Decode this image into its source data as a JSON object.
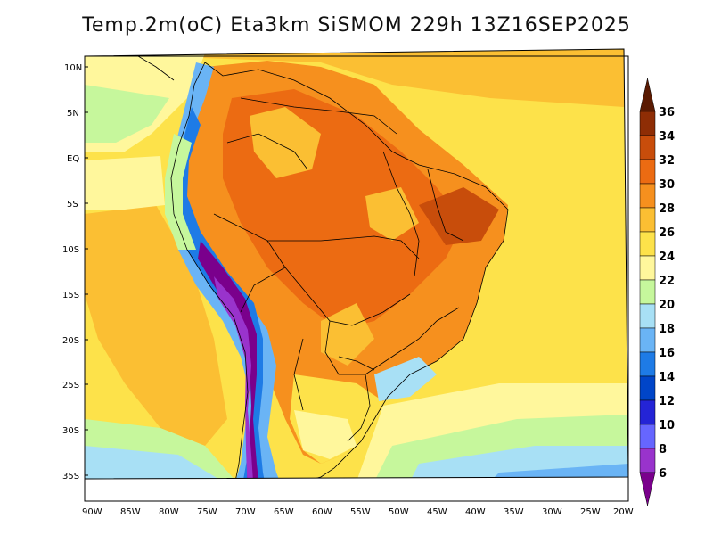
{
  "title": "Temp.2m(oC) Eta3km SiSMOM 229h 13Z16SEP2025",
  "lat_labels": [
    "10N",
    "5N",
    "EQ",
    "5S",
    "10S",
    "15S",
    "20S",
    "25S",
    "30S",
    "35S"
  ],
  "lon_labels": [
    "90W",
    "85W",
    "80W",
    "75W",
    "70W",
    "65W",
    "60W",
    "55W",
    "50W",
    "45W",
    "40W",
    "35W",
    "30W",
    "25W",
    "20W"
  ],
  "colorbar": {
    "labels": [
      "6",
      "8",
      "10",
      "12",
      "14",
      "16",
      "18",
      "20",
      "22",
      "24",
      "26",
      "28",
      "30",
      "32",
      "34",
      "36"
    ],
    "colors": [
      "#7a008c",
      "#9933cc",
      "#6666ff",
      "#2424d6",
      "#0045c8",
      "#1e7be6",
      "#6ab4f5",
      "#a8e0f5",
      "#c6f79c",
      "#fff79c",
      "#fde24a",
      "#fbbf33",
      "#f6901e",
      "#ec6b12",
      "#c84d0b",
      "#8e2d05",
      "#5a1a02"
    ]
  }
}
